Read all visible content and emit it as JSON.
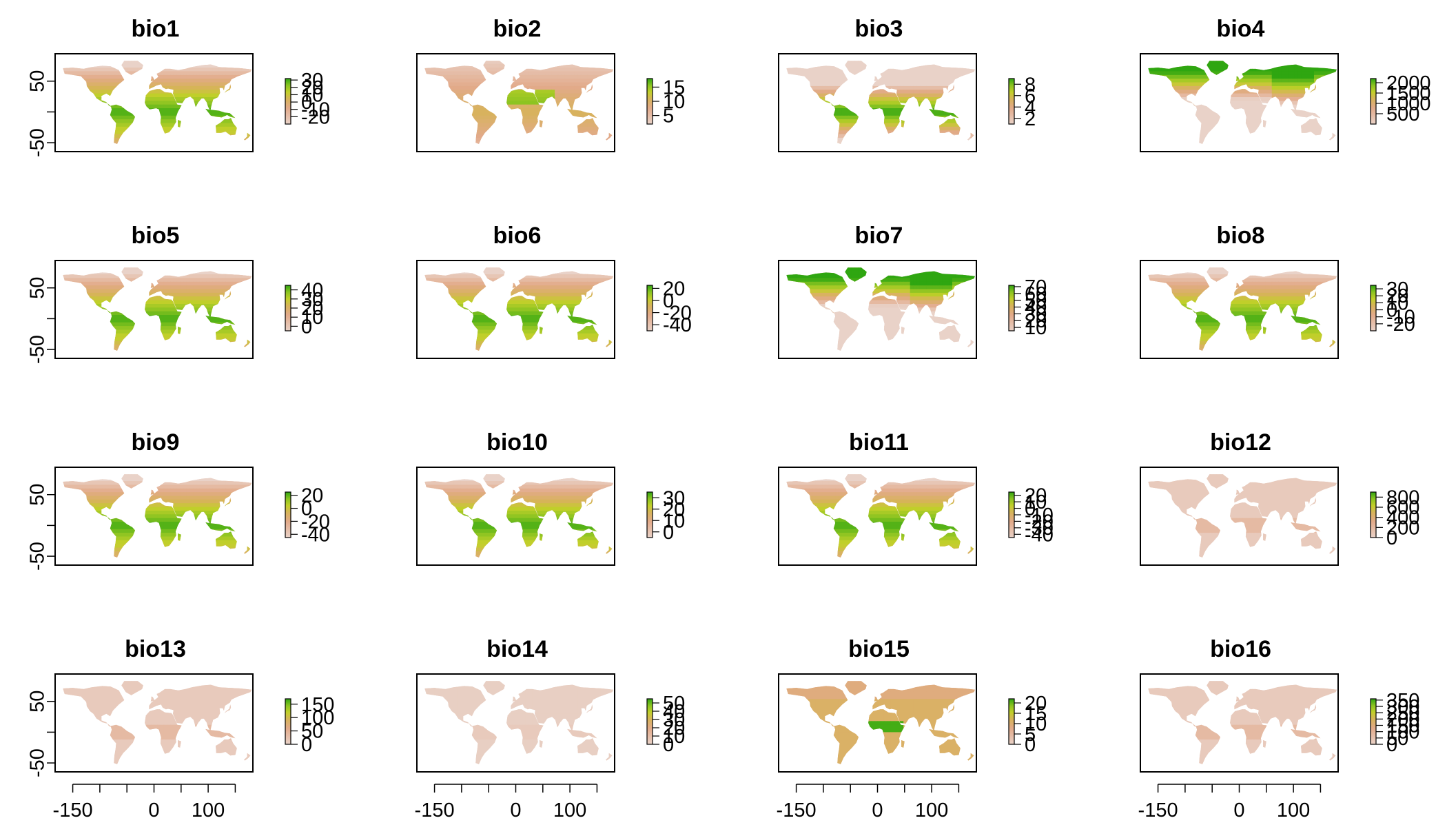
{
  "figure": {
    "type": "raster-map-grid",
    "layout": "4x4",
    "colormap": [
      "#e7e7e7",
      "#e9d2c8",
      "#e2aa8a",
      "#d7b35a",
      "#c2cf2a",
      "#8bc421",
      "#2fa611"
    ],
    "land_colormap_note": ""
  },
  "axes": {
    "x_ticks": [
      {
        "value": -150,
        "label": "-150"
      },
      {
        "value": 0,
        "label": "0"
      },
      {
        "value": 100,
        "label": "100"
      }
    ],
    "x_minor_ticks": [
      -100,
      -50,
      50,
      150
    ],
    "y_ticks": [
      {
        "value": 50,
        "label": "50"
      },
      {
        "value": -50,
        "label": "-50"
      }
    ],
    "y_minor_ticks": [
      0
    ],
    "xlim": [
      -180,
      180
    ],
    "ylim": [
      -60,
      90
    ]
  },
  "panels": [
    {
      "title": "bio1",
      "pattern": "temp",
      "range": [
        -30,
        32
      ],
      "legend_ticks": [
        "30",
        "20",
        "10",
        "0",
        "-10",
        "-20"
      ]
    },
    {
      "title": "bio2",
      "pattern": "range",
      "range": [
        2,
        18
      ],
      "legend_ticks": [
        "15",
        "10",
        "5"
      ]
    },
    {
      "title": "bio3",
      "pattern": "iso",
      "range": [
        1,
        9
      ],
      "legend_ticks": [
        "8",
        "6",
        "4",
        "2"
      ]
    },
    {
      "title": "bio4",
      "pattern": "season",
      "range": [
        0,
        2200
      ],
      "legend_ticks": [
        "2000",
        "1500",
        "1000",
        "500"
      ]
    },
    {
      "title": "bio5",
      "pattern": "temp",
      "range": [
        -5,
        45
      ],
      "legend_ticks": [
        "40",
        "30",
        "20",
        "10",
        "0"
      ]
    },
    {
      "title": "bio6",
      "pattern": "temp",
      "range": [
        -50,
        25
      ],
      "legend_ticks": [
        "20",
        "0",
        "-20",
        "-40"
      ]
    },
    {
      "title": "bio7",
      "pattern": "season",
      "range": [
        5,
        72
      ],
      "legend_ticks": [
        "70",
        "60",
        "50",
        "40",
        "30",
        "20",
        "10"
      ]
    },
    {
      "title": "bio8",
      "pattern": "temp",
      "range": [
        -30,
        35
      ],
      "legend_ticks": [
        "30",
        "20",
        "10",
        "0",
        "-10",
        "-20"
      ]
    },
    {
      "title": "bio9",
      "pattern": "temp",
      "range": [
        -45,
        25
      ],
      "legend_ticks": [
        "20",
        "0",
        "-20",
        "-40"
      ]
    },
    {
      "title": "bio10",
      "pattern": "temp",
      "range": [
        -5,
        35
      ],
      "legend_ticks": [
        "30",
        "20",
        "10",
        "0"
      ]
    },
    {
      "title": "bio11",
      "pattern": "temp",
      "range": [
        -45,
        25
      ],
      "legend_ticks": [
        "20",
        "10",
        "0",
        "-10",
        "-20",
        "-30",
        "-40"
      ]
    },
    {
      "title": "bio12",
      "pattern": "precip",
      "range": [
        0,
        900
      ],
      "legend_ticks": [
        "800",
        "600",
        "400",
        "200",
        "0"
      ]
    },
    {
      "title": "bio13",
      "pattern": "precip",
      "range": [
        0,
        170
      ],
      "legend_ticks": [
        "150",
        "100",
        "50",
        "0"
      ]
    },
    {
      "title": "bio14",
      "pattern": "dry",
      "range": [
        0,
        55
      ],
      "legend_ticks": [
        "50",
        "40",
        "30",
        "20",
        "10",
        "0"
      ]
    },
    {
      "title": "bio15",
      "pattern": "pseas",
      "range": [
        0,
        22
      ],
      "legend_ticks": [
        "20",
        "15",
        "10",
        "5",
        "0"
      ]
    },
    {
      "title": "bio16",
      "pattern": "precip",
      "range": [
        0,
        360
      ],
      "legend_ticks": [
        "350",
        "300",
        "250",
        "200",
        "150",
        "100",
        "50",
        "0"
      ]
    }
  ]
}
